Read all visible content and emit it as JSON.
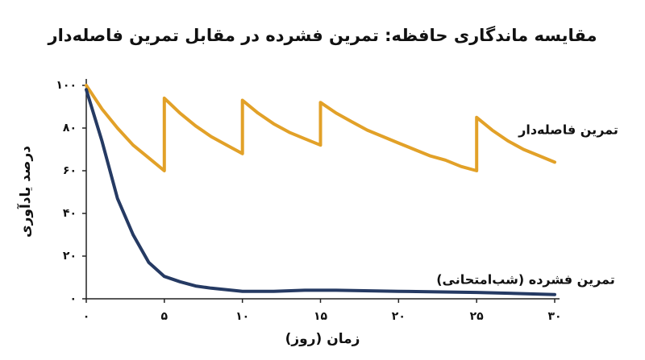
{
  "chart_data": {
    "type": "line",
    "title": "مقایسه ماندگاری حافظه: تمرین فشرده در مقابل تمرین فاصله‌دار",
    "x_label": "زمان (روز)",
    "y_label": "درصد یادآوری",
    "series": [
      {
        "name": "تمرین فاصله‌دار",
        "color": "#e2a128",
        "x": [
          0,
          1,
          2,
          3,
          4,
          5,
          5,
          6,
          7,
          8,
          9,
          10,
          10,
          11,
          12,
          13,
          14,
          15,
          15,
          16,
          17,
          18,
          19,
          20,
          21,
          22,
          23,
          24,
          25,
          25,
          26,
          27,
          28,
          29,
          30
        ],
        "values": [
          100,
          89,
          80,
          72,
          66,
          60,
          94,
          87,
          81,
          76,
          72,
          68,
          93,
          87,
          82,
          78,
          75,
          72,
          92,
          87,
          83,
          79,
          76,
          73,
          70,
          67,
          65,
          62,
          60,
          85,
          79,
          74,
          70,
          67,
          64
        ]
      },
      {
        "name": "تمرین فشرده (شب‌امتحانی)",
        "color": "#253a63",
        "x": [
          0,
          1,
          2,
          3,
          4,
          5,
          6,
          7,
          8,
          10,
          12,
          14,
          16,
          20,
          25,
          30
        ],
        "values": [
          98,
          74,
          47,
          30,
          17,
          10.5,
          8,
          6,
          5,
          3.5,
          3.5,
          4,
          4,
          3.5,
          3,
          2
        ]
      }
    ],
    "xlim": [
      0,
      30
    ],
    "ylim": [
      0,
      100
    ],
    "xticks": [
      {
        "value": 0,
        "label": "۰"
      },
      {
        "value": 5,
        "label": "۵"
      },
      {
        "value": 10,
        "label": "۱۰"
      },
      {
        "value": 15,
        "label": "۱۵"
      },
      {
        "value": 20,
        "label": "۲۰"
      },
      {
        "value": 25,
        "label": "۲۵"
      },
      {
        "value": 30,
        "label": "۳۰"
      }
    ],
    "yticks": [
      {
        "value": 0,
        "label": "۰"
      },
      {
        "value": 20,
        "label": "۲۰"
      },
      {
        "value": 40,
        "label": "۴۰"
      },
      {
        "value": 60,
        "label": "۶۰"
      },
      {
        "value": 80,
        "label": "۸۰"
      },
      {
        "value": 100,
        "label": "۱۰۰"
      }
    ],
    "grid": false
  }
}
